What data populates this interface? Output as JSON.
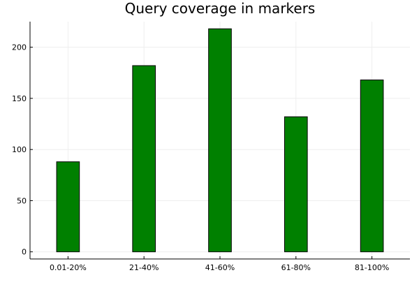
{
  "chart_data": {
    "type": "bar",
    "title": "Query coverage in markers",
    "xlabel": "",
    "ylabel": "",
    "categories": [
      "0.01-20%",
      "21-40%",
      "41-60%",
      "61-80%",
      "81-100%"
    ],
    "values": [
      88,
      182,
      218,
      132,
      168
    ],
    "ylim": [
      -7,
      225
    ],
    "yticks": [
      0,
      50,
      100,
      150,
      200
    ],
    "grid": true,
    "legend": false,
    "colors": {
      "bar": "#008000",
      "bar_stroke": "#000000",
      "grid": "#eeeeee",
      "axis": "#000000",
      "text": "#000000"
    }
  }
}
